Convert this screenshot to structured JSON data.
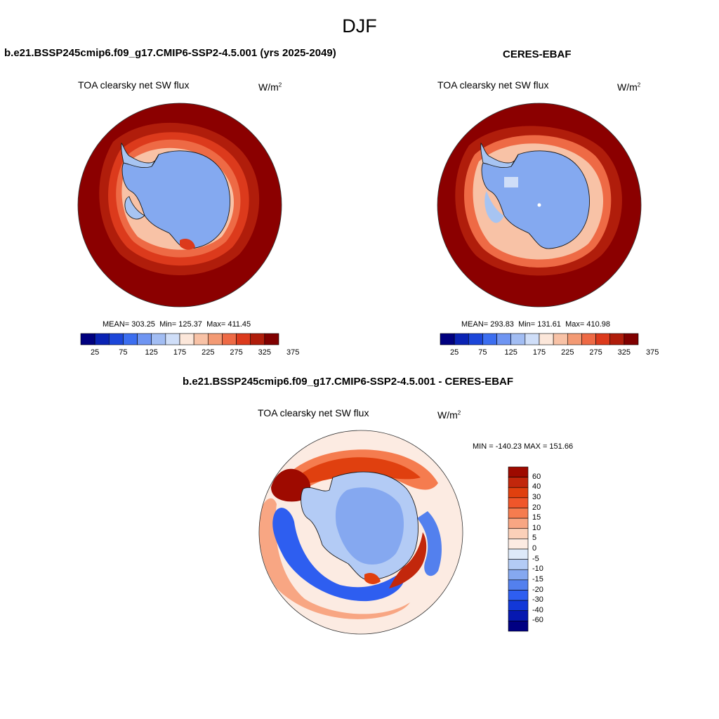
{
  "season": "DJF",
  "colors": {
    "ocean_dark": "#8b0000",
    "land_ice": "#a7c4f2",
    "ice_blue": "#84a9f0",
    "coast": "#1a1a1a"
  },
  "chart_data": [
    {
      "type": "heatmap",
      "title": "b.e21.BSSP245cmip6.f09_g17.CMIP6-SSP2-4.5.001 (yrs 2025-2049)",
      "field_label": "TOA clearsky net SW flux",
      "units": "W/m",
      "units_sup": "2",
      "mean_label": "MEAN=",
      "mean": "303.25",
      "min_label": "Min=",
      "min": "125.37",
      "max_label": "Max=",
      "max": "411.45",
      "colorbar": {
        "colors": [
          "#00007f",
          "#0a23b4",
          "#1c46d9",
          "#3c6ef0",
          "#6f95f2",
          "#a2bdf3",
          "#cfdef8",
          "#fce7da",
          "#f8c2a6",
          "#f39a74",
          "#ee6a45",
          "#dc3a1c",
          "#b01d0b",
          "#800000"
        ],
        "tick_labels": [
          "25",
          "75",
          "125",
          "175",
          "225",
          "275",
          "325",
          "375"
        ]
      }
    },
    {
      "type": "heatmap",
      "title": "CERES-EBAF",
      "field_label": "TOA clearsky net SW flux",
      "units": "W/m",
      "units_sup": "2",
      "mean_label": "MEAN=",
      "mean": "293.83",
      "min_label": "Min=",
      "min": "131.61",
      "max_label": "Max=",
      "max": "410.98",
      "colorbar": {
        "colors": [
          "#00007f",
          "#0a23b4",
          "#1c46d9",
          "#3c6ef0",
          "#6f95f2",
          "#a2bdf3",
          "#cfdef8",
          "#fce7da",
          "#f8c2a6",
          "#f39a74",
          "#ee6a45",
          "#dc3a1c",
          "#b01d0b",
          "#800000"
        ],
        "tick_labels": [
          "25",
          "75",
          "125",
          "175",
          "225",
          "275",
          "325",
          "375"
        ]
      }
    },
    {
      "type": "heatmap",
      "title": "b.e21.BSSP245cmip6.f09_g17.CMIP6-SSP2-4.5.001 - CERES-EBAF",
      "field_label": "TOA clearsky net SW flux",
      "units": "W/m",
      "units_sup": "2",
      "minmax_label": "MIN = -140.23 MAX = 151.66",
      "colorbar": {
        "colors": [
          "#9e0a00",
          "#c2270c",
          "#e0400f",
          "#f0562a",
          "#f57c4f",
          "#f8a683",
          "#fbd0b9",
          "#fcebe2",
          "#dde9f9",
          "#b3cbf5",
          "#85a8f0",
          "#5380ee",
          "#2e5ef0",
          "#1238d8",
          "#0618b0",
          "#000082"
        ],
        "tick_labels": [
          "60",
          "40",
          "30",
          "20",
          "15",
          "10",
          "5",
          "0",
          "-5",
          "-10",
          "-15",
          "-20",
          "-30",
          "-40",
          "-60"
        ]
      }
    }
  ]
}
